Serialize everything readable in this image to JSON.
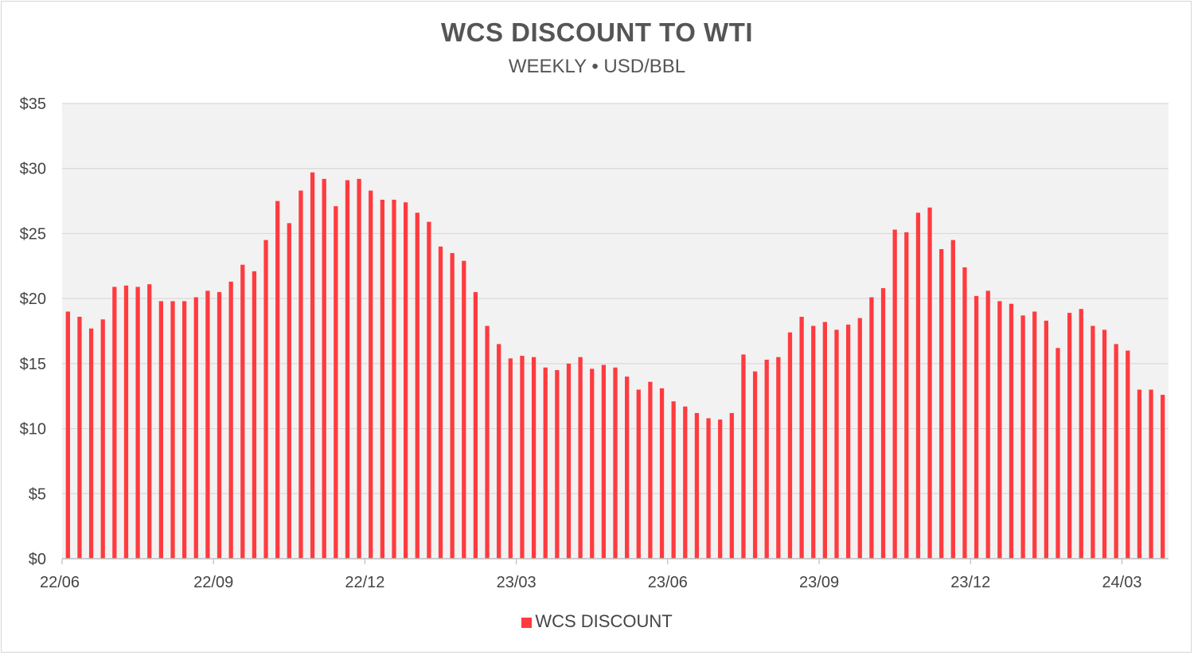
{
  "chart_data": {
    "type": "bar",
    "title": "WCS DISCOUNT TO WTI",
    "subtitle": "WEEKLY • USD/BBL",
    "xlabel": "",
    "ylabel": "",
    "ylim": [
      0,
      35
    ],
    "y_ticks": [
      "$0",
      "$5",
      "$10",
      "$15",
      "$20",
      "$25",
      "$30",
      "$35"
    ],
    "y_tick_values": [
      0,
      5,
      10,
      15,
      20,
      25,
      30,
      35
    ],
    "x_tick_labels": [
      "22/06",
      "22/09",
      "22/12",
      "23/03",
      "23/06",
      "23/09",
      "23/12",
      "24/03"
    ],
    "grid": true,
    "legend_position": "bottom",
    "bar_color": "#ff3b3f",
    "plot_background": "#f2f2f2",
    "series": [
      {
        "name": "WCS DISCOUNT",
        "values": [
          19.0,
          18.6,
          17.7,
          18.4,
          20.9,
          21.0,
          20.9,
          21.1,
          19.8,
          19.8,
          19.8,
          20.1,
          20.6,
          20.5,
          21.3,
          22.6,
          22.1,
          24.5,
          27.5,
          25.8,
          28.3,
          29.7,
          29.2,
          27.1,
          29.1,
          29.2,
          28.3,
          27.6,
          27.6,
          27.4,
          26.6,
          25.9,
          24.0,
          23.5,
          22.9,
          20.5,
          17.9,
          16.5,
          15.4,
          15.6,
          15.5,
          14.7,
          14.5,
          15.0,
          15.5,
          14.6,
          14.9,
          14.7,
          14.0,
          13.0,
          13.6,
          13.1,
          12.1,
          11.7,
          11.2,
          10.8,
          10.7,
          11.2,
          15.7,
          14.4,
          15.3,
          15.5,
          17.4,
          18.6,
          17.9,
          18.2,
          17.6,
          18.0,
          18.5,
          20.1,
          20.8,
          25.3,
          25.1,
          26.6,
          27.0,
          23.8,
          24.5,
          22.4,
          20.2,
          20.6,
          19.8,
          19.6,
          18.7,
          19.0,
          18.3,
          16.2,
          18.9,
          19.2,
          17.9,
          17.6,
          16.5,
          16.0,
          13.0,
          13.0,
          12.6
        ]
      }
    ]
  }
}
